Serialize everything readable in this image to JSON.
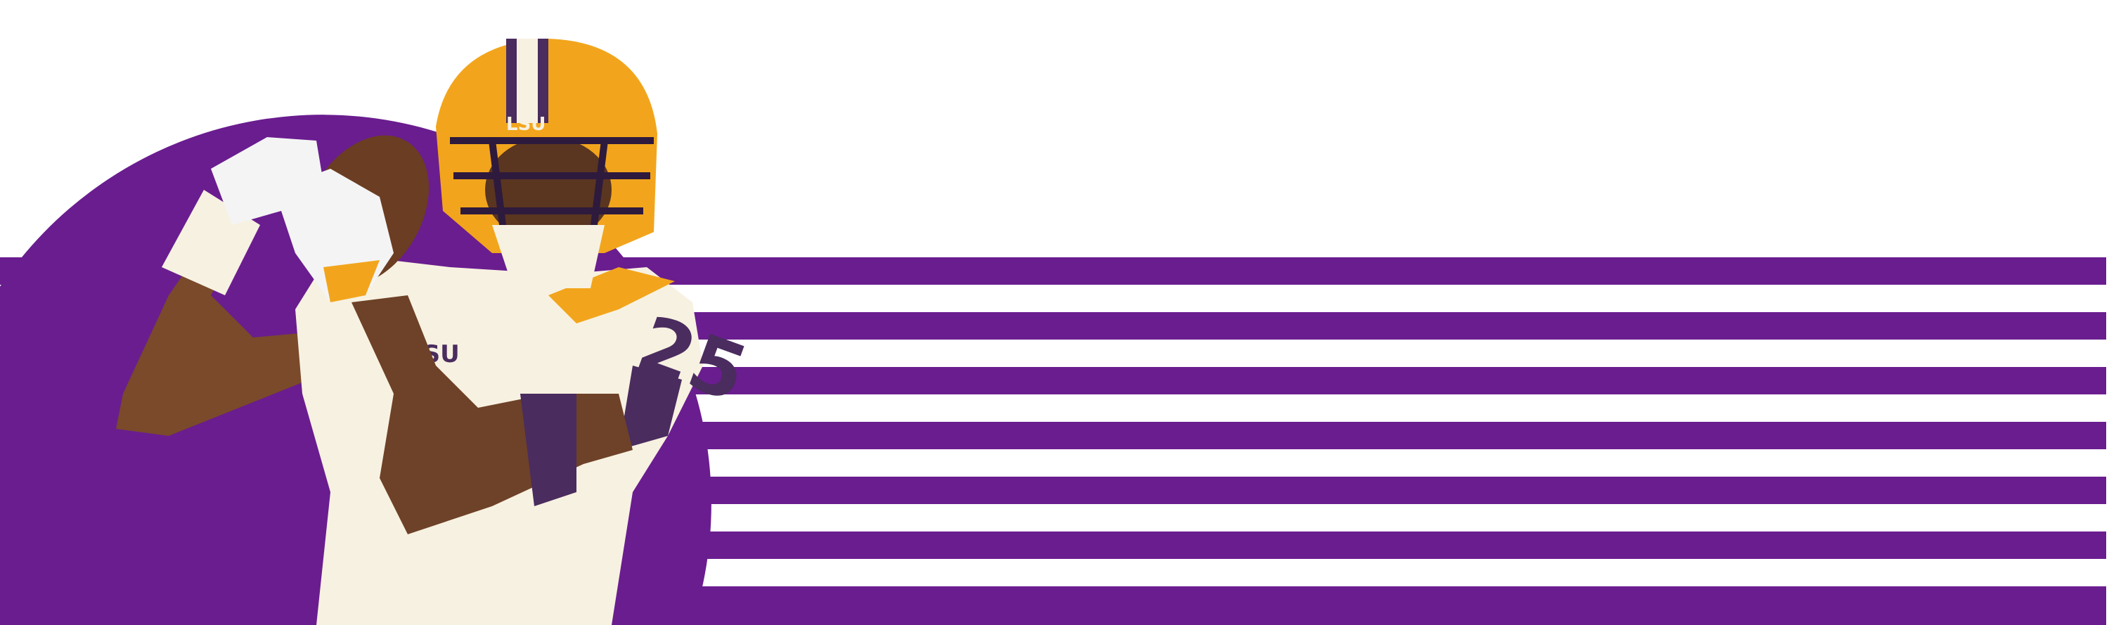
{
  "colors": {
    "purple": "#6a1d8f",
    "gold": "#f2a51c",
    "jersey": "#f7f1e1",
    "background": "#ffffff",
    "skin": "#7a4a2a",
    "dark_purple": "#4a2c5e"
  },
  "player": {
    "helmet_text": "LSU",
    "chest_text": "LSU",
    "jersey_number": "25"
  },
  "stripes": {
    "count": 7
  }
}
